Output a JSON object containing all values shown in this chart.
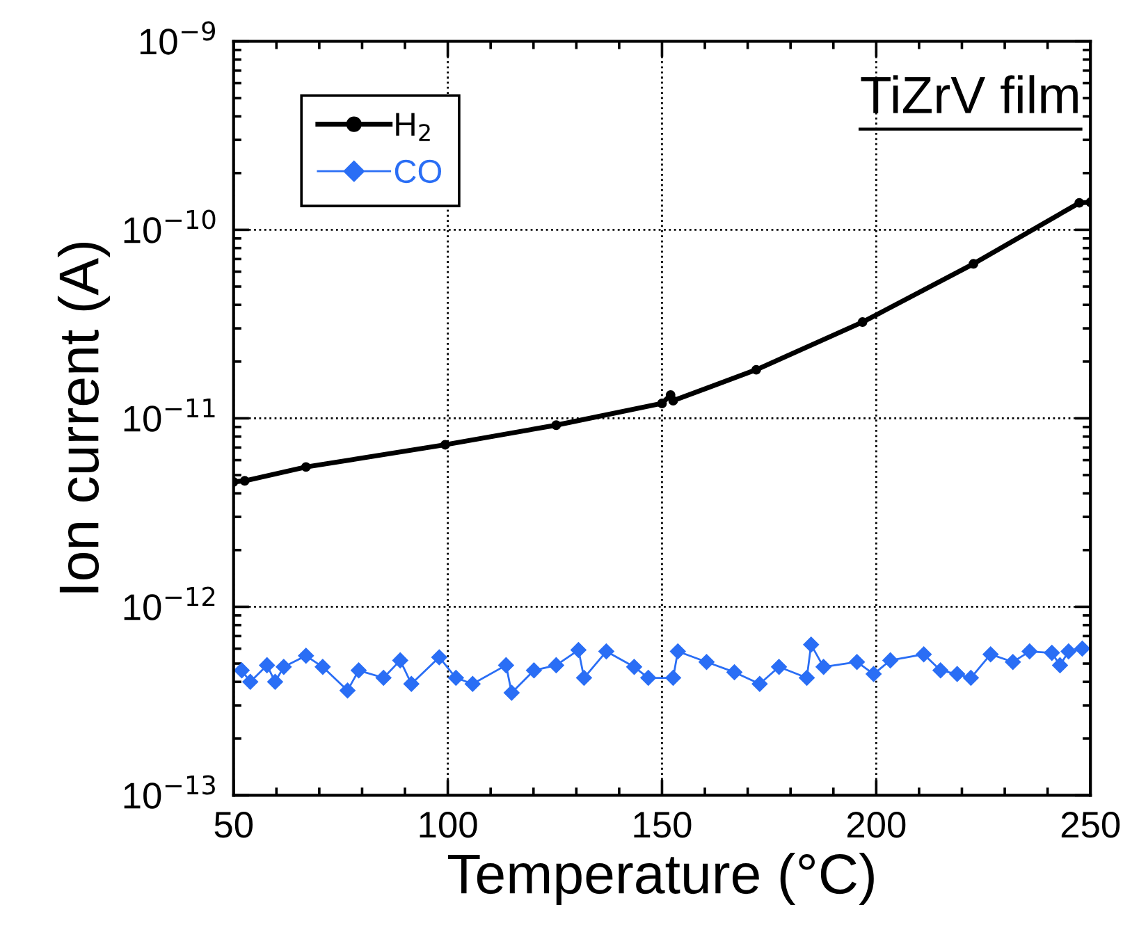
{
  "chart_data": {
    "type": "line",
    "title": "TiZrV film",
    "xlabel": "Temperature (°C)",
    "ylabel": "Ion current (A)",
    "log": "y",
    "xlim": [
      50,
      250
    ],
    "xticks": [
      50,
      100,
      150,
      200,
      250
    ],
    "ylim": [
      1e-13,
      1e-09
    ],
    "yticks": [
      {
        "value": 1e-13,
        "label": "10$^{−13}$"
      },
      {
        "value": 1e-12,
        "label": "10$^{−12}$"
      },
      {
        "value": 1e-11,
        "label": "10$^{−11}$"
      },
      {
        "value": 1e-10,
        "label": "10$^{−10}$"
      },
      {
        "value": 1e-09,
        "label": "10$^{−9}$"
      }
    ],
    "grid": true,
    "legend": "top left",
    "series": [
      {
        "name": "H$_{2}$",
        "color": "#000000",
        "marker": "circle",
        "x": [
          50,
          52.6,
          66.9,
          99.4,
          125.3,
          150,
          152,
          152.6,
          172,
          196.8,
          222.7,
          247.4,
          250
        ],
        "values": [
          4.6e-12,
          4.66e-12,
          5.52e-12,
          7.24e-12,
          9.2e-12,
          1.2e-11,
          1.33e-11,
          1.24e-11,
          1.81e-11,
          3.24e-11,
          6.6e-11,
          1.39e-10,
          1.4e-10
        ]
      },
      {
        "name": "CO",
        "color": "#2a6ef5",
        "marker": "diamond",
        "x": [
          51.9,
          53.9,
          57.8,
          59.7,
          61.7,
          66.9,
          70.8,
          76.6,
          79.2,
          85,
          88.9,
          91.5,
          98,
          101.9,
          105.8,
          113.6,
          114.9,
          120.1,
          125.3,
          130.5,
          131.8,
          137,
          143.5,
          146.8,
          152.6,
          153.7,
          160.4,
          166.9,
          172.8,
          177.3,
          183.8,
          184.8,
          187.7,
          195.5,
          199.4,
          203.3,
          211.1,
          215,
          218.9,
          222.1,
          226.7,
          231.9,
          235.8,
          241,
          242.9,
          244.9,
          248.1
        ],
        "values": [
          4.6e-13,
          4e-13,
          4.9e-13,
          4e-13,
          4.8e-13,
          5.5e-13,
          4.8e-13,
          3.6e-13,
          4.6e-13,
          4.2e-13,
          5.2e-13,
          3.9e-13,
          5.4e-13,
          4.2e-13,
          3.9e-13,
          4.9e-13,
          3.5e-13,
          4.6e-13,
          4.9e-13,
          5.9e-13,
          4.2e-13,
          5.8e-13,
          4.8e-13,
          4.2e-13,
          4.2e-13,
          5.8e-13,
          5.1e-13,
          4.5e-13,
          3.9e-13,
          4.8e-13,
          4.2e-13,
          6.3e-13,
          4.8e-13,
          5.1e-13,
          4.4e-13,
          5.2e-13,
          5.6e-13,
          4.6e-13,
          4.4e-13,
          4.2e-13,
          5.6e-13,
          5.1e-13,
          5.8e-13,
          5.7e-13,
          4.9e-13,
          5.8e-13,
          6e-13
        ]
      }
    ]
  }
}
